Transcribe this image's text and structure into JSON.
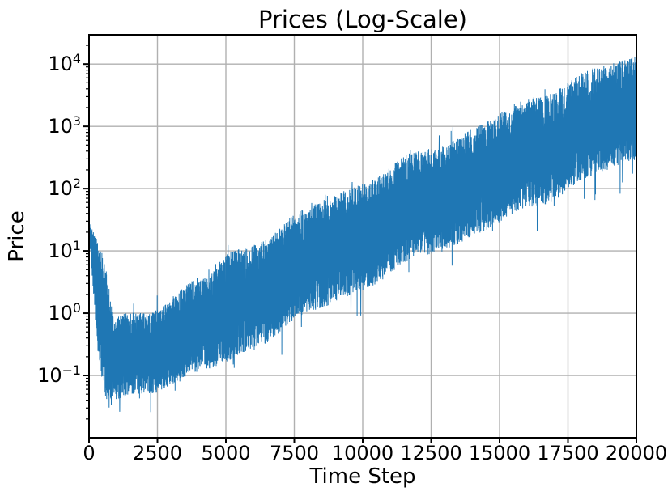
{
  "chart_data": {
    "type": "line",
    "title": "Prices (Log-Scale)",
    "xlabel": "Time Step",
    "ylabel": "Price",
    "yscale": "log",
    "grid": true,
    "legend": false,
    "line_color": "#1f77b4",
    "grid_color": "#b0b0b0",
    "axis_color": "#000000",
    "xlim": [
      0,
      20000
    ],
    "x_ticks": [
      0,
      2500,
      5000,
      7500,
      10000,
      12500,
      15000,
      17500,
      20000
    ],
    "ylim_log10": [
      -2.0,
      4.47
    ],
    "y_ticks_log10": [
      -1,
      0,
      1,
      2,
      3,
      4
    ],
    "series_name": "price",
    "envelope_log10": {
      "x": [
        0,
        300,
        600,
        700,
        900,
        1200,
        1700,
        2500,
        3500,
        5000,
        7500,
        10000,
        12500,
        15000,
        17500,
        20000
      ],
      "top": [
        1.45,
        1.15,
        0.7,
        0.45,
        -0.2,
        -0.1,
        0.0,
        0.15,
        0.45,
        0.92,
        1.5,
        2.1,
        2.7,
        3.2,
        3.7,
        4.12
      ],
      "bottom": [
        1.3,
        -0.6,
        -1.45,
        -1.62,
        -1.55,
        -1.45,
        -1.3,
        -1.18,
        -1.0,
        -0.8,
        -0.2,
        0.38,
        1.0,
        1.45,
        1.95,
        2.45
      ]
    },
    "notable_values": {
      "start_value_approx": 28,
      "min_value_approx": 0.022,
      "min_at_time_step_approx": 700,
      "end_value_approx": 1900,
      "end_peak_approx": 12000
    }
  }
}
